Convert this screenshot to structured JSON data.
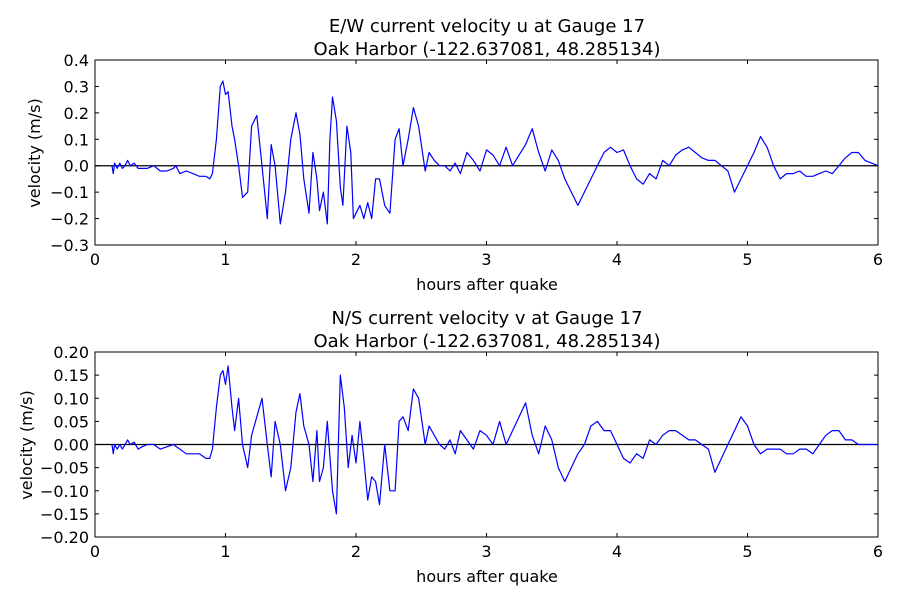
{
  "colors": {
    "series": "#0000ff",
    "zero_line": "#000000",
    "axes": "#000000"
  },
  "chart_data": [
    {
      "type": "line",
      "title": "E/W current velocity u at Gauge 17",
      "subtitle": "Oak Harbor  (-122.637081, 48.285134)",
      "xlabel": "hours after quake",
      "ylabel": "velocity (m/s)",
      "xlim": [
        0,
        6
      ],
      "ylim": [
        -0.3,
        0.4
      ],
      "xticks": [
        0,
        1,
        2,
        3,
        4,
        5,
        6
      ],
      "xtick_labels": [
        "0",
        "1",
        "2",
        "3",
        "4",
        "5",
        "6"
      ],
      "yticks": [
        -0.3,
        -0.2,
        -0.1,
        0.0,
        0.1,
        0.2,
        0.3,
        0.4
      ],
      "ytick_labels": [
        "−0.3",
        "−0.2",
        "−0.1",
        "0.0",
        "0.1",
        "0.2",
        "0.3",
        "0.4"
      ],
      "grid": false,
      "reference_line": 0,
      "x": [
        0.13,
        0.14,
        0.15,
        0.17,
        0.19,
        0.21,
        0.23,
        0.25,
        0.27,
        0.3,
        0.33,
        0.36,
        0.4,
        0.45,
        0.5,
        0.55,
        0.6,
        0.62,
        0.65,
        0.7,
        0.75,
        0.8,
        0.85,
        0.88,
        0.9,
        0.93,
        0.96,
        0.98,
        1.0,
        1.02,
        1.05,
        1.07,
        1.1,
        1.13,
        1.17,
        1.2,
        1.24,
        1.28,
        1.32,
        1.35,
        1.38,
        1.42,
        1.46,
        1.5,
        1.54,
        1.57,
        1.6,
        1.64,
        1.67,
        1.7,
        1.72,
        1.75,
        1.78,
        1.8,
        1.82,
        1.85,
        1.88,
        1.9,
        1.93,
        1.96,
        1.98,
        2.0,
        2.03,
        2.06,
        2.09,
        2.12,
        2.15,
        2.18,
        2.22,
        2.26,
        2.3,
        2.33,
        2.36,
        2.4,
        2.44,
        2.48,
        2.5,
        2.53,
        2.56,
        2.6,
        2.64,
        2.68,
        2.72,
        2.76,
        2.8,
        2.85,
        2.9,
        2.95,
        3.0,
        3.05,
        3.1,
        3.15,
        3.2,
        3.25,
        3.3,
        3.35,
        3.4,
        3.45,
        3.5,
        3.55,
        3.6,
        3.65,
        3.7,
        3.75,
        3.8,
        3.85,
        3.9,
        3.95,
        4.0,
        4.05,
        4.1,
        4.15,
        4.2,
        4.25,
        4.3,
        4.35,
        4.4,
        4.45,
        4.5,
        4.55,
        4.6,
        4.65,
        4.7,
        4.75,
        4.8,
        4.85,
        4.9,
        4.95,
        5.0,
        5.05,
        5.1,
        5.15,
        5.2,
        5.25,
        5.3,
        5.35,
        5.4,
        5.45,
        5.5,
        5.55,
        5.6,
        5.65,
        5.7,
        5.75,
        5.8,
        5.85,
        5.9,
        5.95,
        6.0
      ],
      "y": [
        0.0,
        -0.03,
        0.01,
        -0.01,
        0.01,
        -0.01,
        0.0,
        0.02,
        0.0,
        0.01,
        -0.01,
        -0.01,
        -0.01,
        0.0,
        -0.02,
        -0.02,
        -0.01,
        0.0,
        -0.03,
        -0.02,
        -0.03,
        -0.04,
        -0.04,
        -0.05,
        -0.03,
        0.1,
        0.3,
        0.32,
        0.27,
        0.28,
        0.15,
        0.1,
        0.0,
        -0.12,
        -0.1,
        0.15,
        0.19,
        0.0,
        -0.2,
        0.08,
        0.0,
        -0.22,
        -0.1,
        0.1,
        0.2,
        0.12,
        -0.05,
        -0.18,
        0.05,
        -0.05,
        -0.17,
        -0.1,
        -0.22,
        0.1,
        0.26,
        0.17,
        -0.08,
        -0.15,
        0.15,
        0.05,
        -0.2,
        -0.18,
        -0.15,
        -0.2,
        -0.14,
        -0.2,
        -0.05,
        -0.05,
        -0.15,
        -0.18,
        0.1,
        0.14,
        0.0,
        0.1,
        0.22,
        0.15,
        0.08,
        -0.02,
        0.05,
        0.02,
        0.0,
        0.0,
        -0.02,
        0.01,
        -0.03,
        0.05,
        0.02,
        -0.02,
        0.06,
        0.04,
        0.0,
        0.07,
        0.0,
        0.04,
        0.08,
        0.14,
        0.05,
        -0.02,
        0.06,
        0.02,
        -0.05,
        -0.1,
        -0.15,
        -0.1,
        -0.05,
        0.0,
        0.05,
        0.07,
        0.05,
        0.06,
        0.0,
        -0.05,
        -0.07,
        -0.03,
        -0.05,
        0.02,
        0.0,
        0.04,
        0.06,
        0.07,
        0.05,
        0.03,
        0.02,
        0.02,
        0.0,
        -0.02,
        -0.1,
        -0.05,
        0.0,
        0.05,
        0.11,
        0.07,
        0.0,
        -0.05,
        -0.03,
        -0.03,
        -0.02,
        -0.04,
        -0.04,
        -0.03,
        -0.02,
        -0.03,
        0.0,
        0.03,
        0.05,
        0.05,
        0.02,
        0.01,
        0.0
      ]
    },
    {
      "type": "line",
      "title": "N/S current velocity v at Gauge 17",
      "subtitle": "Oak Harbor  (-122.637081, 48.285134)",
      "xlabel": "hours after quake",
      "ylabel": "velocity (m/s)",
      "xlim": [
        0,
        6
      ],
      "ylim": [
        -0.2,
        0.2
      ],
      "xticks": [
        0,
        1,
        2,
        3,
        4,
        5,
        6
      ],
      "xtick_labels": [
        "0",
        "1",
        "2",
        "3",
        "4",
        "5",
        "6"
      ],
      "yticks": [
        -0.2,
        -0.15,
        -0.1,
        -0.05,
        0.0,
        0.05,
        0.1,
        0.15,
        0.2
      ],
      "ytick_labels": [
        "−0.20",
        "−0.15",
        "−0.10",
        "−0.05",
        "0.00",
        "0.05",
        "0.10",
        "0.15",
        "0.20"
      ],
      "grid": false,
      "reference_line": 0,
      "x": [
        0.13,
        0.14,
        0.15,
        0.17,
        0.19,
        0.21,
        0.23,
        0.25,
        0.27,
        0.3,
        0.33,
        0.36,
        0.4,
        0.45,
        0.5,
        0.55,
        0.6,
        0.65,
        0.7,
        0.75,
        0.8,
        0.85,
        0.88,
        0.9,
        0.93,
        0.96,
        0.98,
        1.0,
        1.02,
        1.05,
        1.07,
        1.1,
        1.13,
        1.17,
        1.2,
        1.24,
        1.28,
        1.32,
        1.35,
        1.38,
        1.42,
        1.46,
        1.5,
        1.54,
        1.57,
        1.6,
        1.64,
        1.67,
        1.7,
        1.72,
        1.75,
        1.78,
        1.82,
        1.85,
        1.88,
        1.91,
        1.94,
        1.97,
        2.0,
        2.03,
        2.06,
        2.09,
        2.12,
        2.15,
        2.18,
        2.22,
        2.26,
        2.3,
        2.33,
        2.36,
        2.4,
        2.44,
        2.48,
        2.5,
        2.53,
        2.56,
        2.6,
        2.64,
        2.68,
        2.72,
        2.76,
        2.8,
        2.85,
        2.9,
        2.95,
        3.0,
        3.05,
        3.1,
        3.15,
        3.2,
        3.25,
        3.3,
        3.35,
        3.4,
        3.45,
        3.5,
        3.55,
        3.6,
        3.65,
        3.7,
        3.75,
        3.8,
        3.85,
        3.9,
        3.95,
        4.0,
        4.05,
        4.1,
        4.15,
        4.2,
        4.25,
        4.3,
        4.35,
        4.4,
        4.45,
        4.5,
        4.55,
        4.6,
        4.65,
        4.7,
        4.75,
        4.8,
        4.85,
        4.9,
        4.95,
        5.0,
        5.05,
        5.1,
        5.15,
        5.2,
        5.25,
        5.3,
        5.35,
        5.4,
        5.45,
        5.5,
        5.55,
        5.6,
        5.65,
        5.7,
        5.75,
        5.8,
        5.85,
        5.9,
        5.95,
        6.0
      ],
      "y": [
        0.0,
        -0.02,
        0.0,
        -0.01,
        0.0,
        -0.01,
        0.0,
        0.01,
        0.0,
        0.005,
        -0.01,
        -0.005,
        0.0,
        0.0,
        -0.01,
        -0.005,
        0.0,
        -0.01,
        -0.02,
        -0.02,
        -0.02,
        -0.03,
        -0.03,
        -0.01,
        0.08,
        0.15,
        0.16,
        0.13,
        0.17,
        0.08,
        0.03,
        0.1,
        0.0,
        -0.05,
        0.02,
        0.06,
        0.1,
        0.0,
        -0.07,
        0.05,
        0.0,
        -0.1,
        -0.05,
        0.07,
        0.11,
        0.04,
        0.0,
        -0.08,
        0.03,
        -0.08,
        -0.05,
        0.05,
        -0.1,
        -0.15,
        0.15,
        0.08,
        -0.05,
        0.02,
        -0.04,
        0.05,
        -0.03,
        -0.12,
        -0.07,
        -0.08,
        -0.13,
        0.0,
        -0.1,
        -0.1,
        0.05,
        0.06,
        0.03,
        0.12,
        0.1,
        0.06,
        0.0,
        0.04,
        0.02,
        0.0,
        -0.01,
        0.01,
        -0.02,
        0.03,
        0.01,
        -0.01,
        0.03,
        0.02,
        0.0,
        0.05,
        0.0,
        0.03,
        0.06,
        0.09,
        0.02,
        -0.02,
        0.04,
        0.01,
        -0.05,
        -0.08,
        -0.05,
        -0.02,
        0.0,
        0.04,
        0.05,
        0.03,
        0.03,
        0.0,
        -0.03,
        -0.04,
        -0.02,
        -0.03,
        0.01,
        0.0,
        0.02,
        0.03,
        0.03,
        0.02,
        0.01,
        0.01,
        0.0,
        -0.01,
        -0.06,
        -0.03,
        0.0,
        0.03,
        0.06,
        0.04,
        0.0,
        -0.02,
        -0.01,
        -0.01,
        -0.01,
        -0.02,
        -0.02,
        -0.01,
        -0.01,
        -0.02,
        0.0,
        0.02,
        0.03,
        0.03,
        0.01,
        0.01,
        0.0,
        0.0,
        0.0,
        0.0
      ]
    }
  ]
}
